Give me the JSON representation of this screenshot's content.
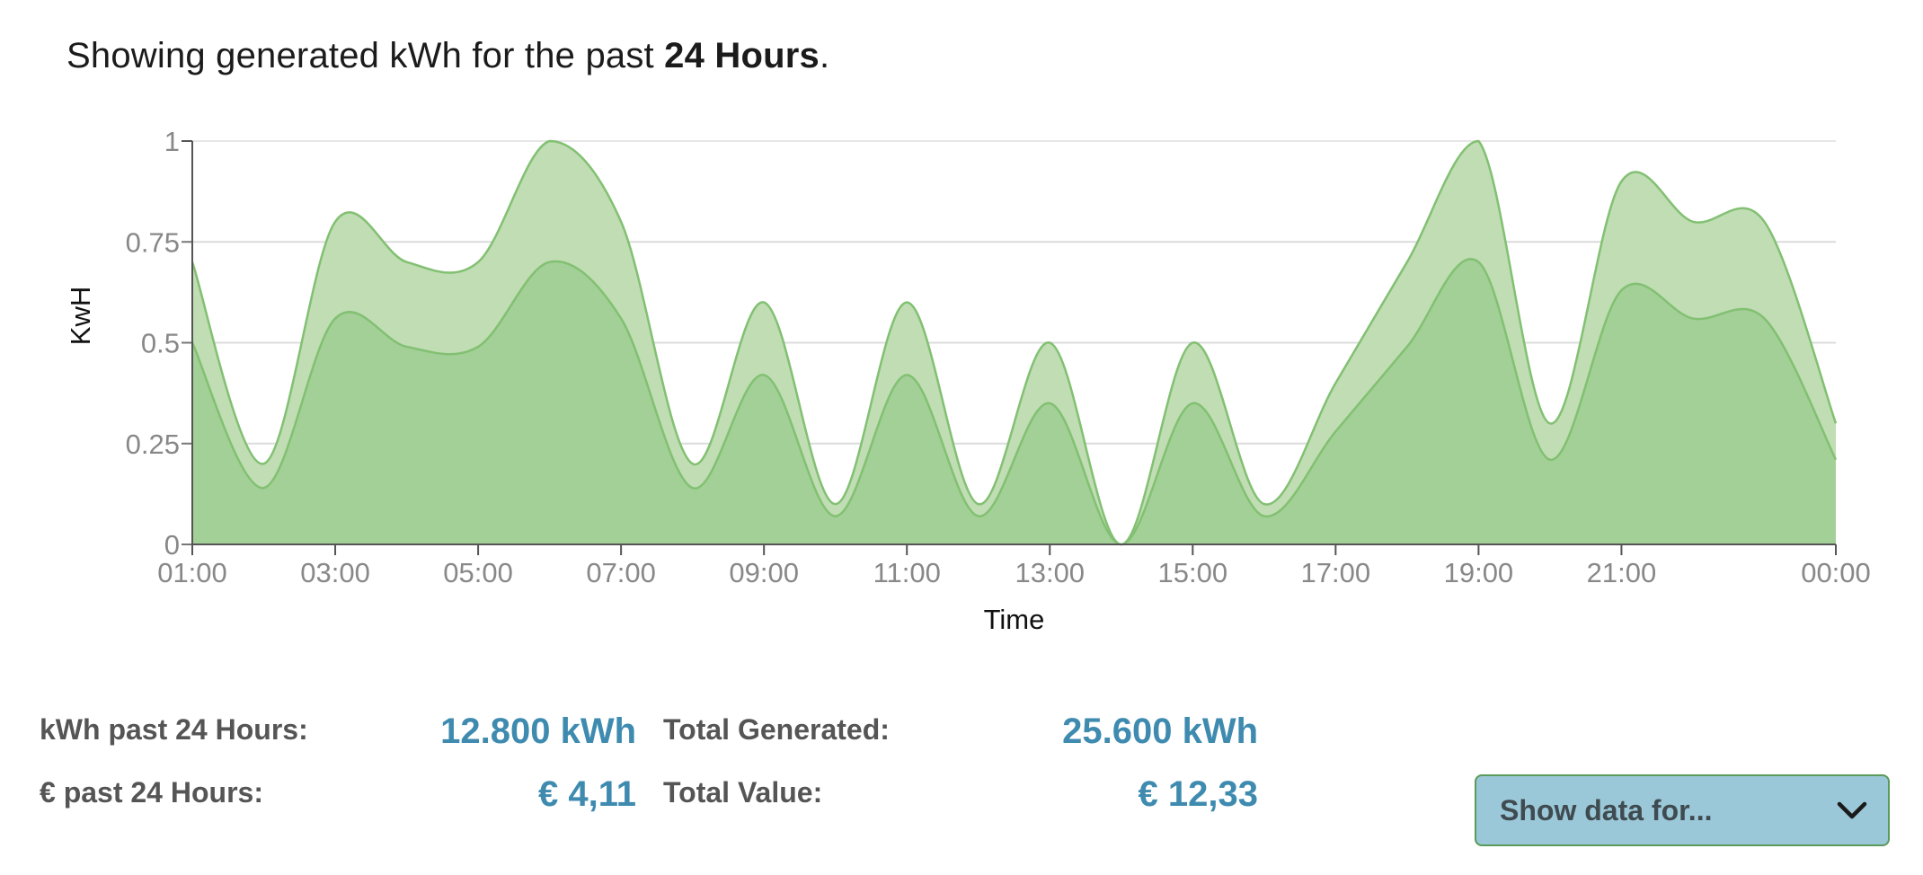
{
  "header": {
    "prefix": "Showing generated kWh for the past ",
    "period": "24 Hours",
    "suffix": "."
  },
  "chart_data": {
    "type": "area",
    "xlabel": "Time",
    "ylabel": "KwH",
    "ylim": [
      0,
      1
    ],
    "y_ticks": [
      "0",
      "0.25",
      "0.5",
      "0.75",
      "1"
    ],
    "x_ticks": [
      "01:00",
      "03:00",
      "05:00",
      "07:00",
      "09:00",
      "11:00",
      "13:00",
      "15:00",
      "17:00",
      "19:00",
      "21:00",
      "00:00"
    ],
    "x": [
      "01:00",
      "02:00",
      "03:00",
      "04:00",
      "05:00",
      "06:00",
      "07:00",
      "08:00",
      "09:00",
      "10:00",
      "11:00",
      "12:00",
      "13:00",
      "14:00",
      "15:00",
      "16:00",
      "17:00",
      "18:00",
      "19:00",
      "20:00",
      "21:00",
      "22:00",
      "23:00",
      "00:00"
    ],
    "stacked": true,
    "grid": true,
    "series": [
      {
        "values": [
          0.5,
          0.14,
          0.56,
          0.49,
          0.49,
          0.7,
          0.56,
          0.14,
          0.42,
          0.07,
          0.42,
          0.07,
          0.35,
          0.0,
          0.35,
          0.07,
          0.28,
          0.49,
          0.7,
          0.21,
          0.63,
          0.56,
          0.56,
          0.21
        ],
        "color": "#a3d097"
      },
      {
        "values": [
          0.2,
          0.06,
          0.24,
          0.21,
          0.21,
          0.3,
          0.24,
          0.06,
          0.18,
          0.03,
          0.18,
          0.03,
          0.15,
          0.0,
          0.15,
          0.03,
          0.12,
          0.21,
          0.3,
          0.09,
          0.27,
          0.24,
          0.24,
          0.09
        ],
        "color": "#c0ddb4"
      }
    ],
    "stroke_color": "#82c072"
  },
  "stats": {
    "kwh_24h_label": "kWh past 24 Hours:",
    "kwh_24h_value": "12.800 kWh",
    "eur_24h_label": "€ past 24 Hours:",
    "eur_24h_value": "€ 4,11",
    "total_generated_label": "Total Generated:",
    "total_generated_value": "25.600 kWh",
    "total_value_label": "Total Value:",
    "total_value_value": "€ 12,33"
  },
  "dropdown": {
    "label": "Show data for...",
    "icon": "chevron-down-icon"
  }
}
